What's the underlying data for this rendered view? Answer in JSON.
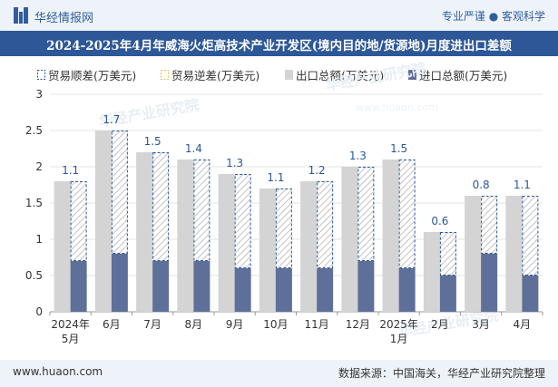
{
  "header": {
    "brand": "华经情报网",
    "tagline": "专业严谨 ● 客观科学"
  },
  "chart_data": {
    "type": "bar",
    "title": "2024-2025年4月年威海火炬高技术产业开发区(境内目的地/货源地)月度进出口差额",
    "unit": "万美元",
    "categories": [
      "2024年\n5月",
      "6月",
      "7月",
      "8月",
      "9月",
      "10月",
      "11月",
      "12月",
      "2025年\n1月",
      "2月",
      "3月",
      "4月"
    ],
    "series": [
      {
        "name": "贸易顺差(万美元)",
        "values": [
          1.1,
          1.7,
          1.5,
          1.4,
          1.3,
          1.1,
          1.2,
          1.3,
          1.5,
          0.6,
          0.8,
          1.1
        ]
      },
      {
        "name": "贸易逆差(万美元)",
        "values": [
          0,
          0,
          0,
          0,
          0,
          0,
          0,
          0,
          0,
          0,
          0,
          0
        ]
      },
      {
        "name": "出口总额(万美元)",
        "values": [
          1.8,
          2.5,
          2.2,
          2.1,
          1.9,
          1.7,
          1.8,
          2.0,
          2.1,
          1.1,
          1.6,
          1.6
        ]
      },
      {
        "name": "进口总额(万美元)",
        "values": [
          0.7,
          0.8,
          0.7,
          0.7,
          0.6,
          0.6,
          0.6,
          0.7,
          0.6,
          0.5,
          0.8,
          0.5
        ]
      }
    ],
    "data_labels": [
      "1.1",
      "1.7",
      "1.5",
      "1.4",
      "1.3",
      "1.1",
      "1.2",
      "1.3",
      "1.5",
      "0.6",
      "0.8",
      "1.1"
    ],
    "yticks": [
      "0",
      "0.5",
      "1",
      "1.5",
      "2",
      "2.5",
      "3"
    ],
    "ylim": [
      0,
      3
    ],
    "legend_position": "top",
    "colors": {
      "surplus": "#2d5797",
      "deficit": "#e0c34a",
      "export": "#d4d4d4",
      "import": "#5e6f99",
      "label": "#2d5797"
    }
  },
  "watermark": "华经产业研究院",
  "watermark_url": "www.huaon.com",
  "footer": {
    "site": "www.huaon.com",
    "source": "数据来源：中国海关，华经产业研究院整理"
  }
}
